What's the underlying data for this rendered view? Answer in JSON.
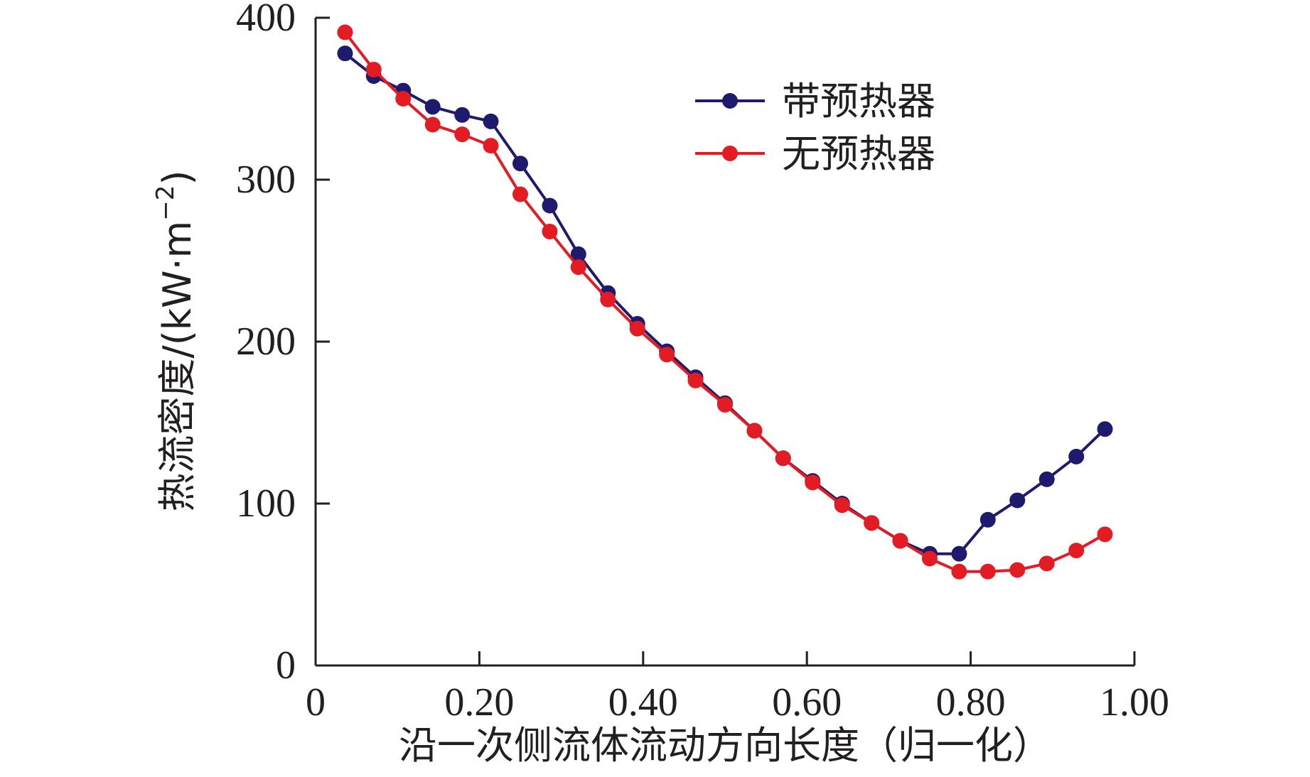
{
  "chart_data": {
    "type": "line",
    "title": "",
    "xlabel": "沿一次侧流体流动方向长度（归一化）",
    "ylabel_main": "热流密度/(kW·m",
    "ylabel_sup": "−2",
    "ylabel_close": ")",
    "xlim": [
      0,
      1.0
    ],
    "ylim": [
      0,
      400
    ],
    "x_ticks": [
      0,
      0.2,
      0.4,
      0.6,
      0.8,
      1.0
    ],
    "x_tick_labels": [
      "0",
      "0.20",
      "0.40",
      "0.60",
      "0.80",
      "1.00"
    ],
    "y_ticks": [
      0,
      100,
      200,
      300,
      400
    ],
    "y_tick_labels": [
      "0",
      "100",
      "200",
      "300",
      "400"
    ],
    "grid": false,
    "legend_position": "top-right",
    "series": [
      {
        "name": "带预热器",
        "color": "#1f1a6e",
        "x": [
          0.036,
          0.071,
          0.107,
          0.143,
          0.179,
          0.214,
          0.25,
          0.286,
          0.321,
          0.357,
          0.393,
          0.429,
          0.464,
          0.5,
          0.536,
          0.571,
          0.607,
          0.643,
          0.679,
          0.714,
          0.75,
          0.786,
          0.821,
          0.857,
          0.893,
          0.929,
          0.964
        ],
        "values": [
          378,
          364,
          355,
          345,
          340,
          336,
          310,
          284,
          254,
          230,
          211,
          194,
          178,
          162,
          145,
          128,
          114,
          100,
          88,
          77,
          69,
          69,
          90,
          102,
          115,
          129,
          146
        ]
      },
      {
        "name": "无预热器",
        "color": "#e31b23",
        "x": [
          0.036,
          0.071,
          0.107,
          0.143,
          0.179,
          0.214,
          0.25,
          0.286,
          0.321,
          0.357,
          0.393,
          0.429,
          0.464,
          0.5,
          0.536,
          0.571,
          0.607,
          0.643,
          0.679,
          0.714,
          0.75,
          0.786,
          0.821,
          0.857,
          0.893,
          0.929,
          0.964
        ],
        "values": [
          391,
          368,
          350,
          334,
          328,
          321,
          291,
          268,
          246,
          226,
          208,
          192,
          176,
          161,
          145,
          128,
          113,
          99,
          88,
          77,
          66,
          58,
          58,
          59,
          63,
          71,
          81
        ]
      }
    ]
  }
}
